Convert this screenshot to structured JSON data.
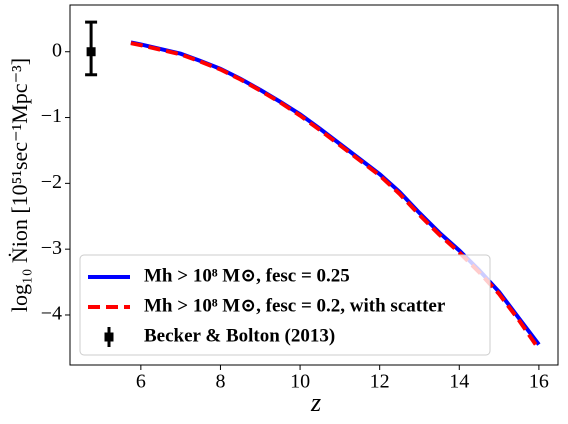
{
  "chart_data": {
    "type": "line",
    "x_label": "z",
    "y_label": "log₁₀ Ṅion [10⁵¹sec⁻¹Mpc⁻³]",
    "xlim": [
      4.22,
      16.48
    ],
    "ylim": [
      -4.76,
      0.71
    ],
    "xticks": [
      6,
      8,
      10,
      12,
      14,
      16
    ],
    "yticks": [
      0,
      {
        "value": -1,
        "label": "−1"
      },
      {
        "value": -2,
        "label": "−2"
      },
      {
        "value": -3,
        "label": "−3"
      },
      {
        "value": -4,
        "label": "−4"
      }
    ],
    "legend": "lower left",
    "series": [
      {
        "name": "Mh > 10⁸ M⊙, fesc = 0.25",
        "color": "#0000ff",
        "dashed": false,
        "x": [
          5.75,
          6,
          6.5,
          7,
          7.5,
          8,
          8.5,
          9,
          9.5,
          10,
          10.5,
          11,
          11.5,
          12,
          12.5,
          13,
          13.5,
          14,
          14.5,
          15,
          15.5,
          16
        ],
        "values": [
          0.14,
          0.11,
          0.04,
          -0.03,
          -0.14,
          -0.26,
          -0.41,
          -0.58,
          -0.76,
          -0.95,
          -1.17,
          -1.4,
          -1.63,
          -1.86,
          -2.13,
          -2.45,
          -2.75,
          -3.02,
          -3.32,
          -3.65,
          -4.05,
          -4.45
        ]
      },
      {
        "name": "Mh > 10⁸ M⊙, fesc = 0.2, with scatter",
        "color": "#ff0000",
        "dashed": true,
        "x": [
          5.75,
          6,
          6.5,
          7,
          7.5,
          8,
          8.5,
          9,
          9.5,
          10,
          10.5,
          11,
          11.5,
          12,
          12.5,
          13,
          13.5,
          14,
          14.5,
          15,
          15.5,
          16
        ],
        "values": [
          0.13,
          0.1,
          0.03,
          -0.04,
          -0.15,
          -0.27,
          -0.42,
          -0.59,
          -0.77,
          -0.97,
          -1.19,
          -1.42,
          -1.65,
          -1.88,
          -2.16,
          -2.48,
          -2.78,
          -3.05,
          -3.35,
          -3.68,
          -4.08,
          -4.52
        ]
      }
    ],
    "errorbar": {
      "name": "Becker & Bolton (2013)",
      "color": "#000000",
      "x": 4.75,
      "y": 0,
      "err_low": 0.35,
      "err_high": 0.45
    }
  }
}
